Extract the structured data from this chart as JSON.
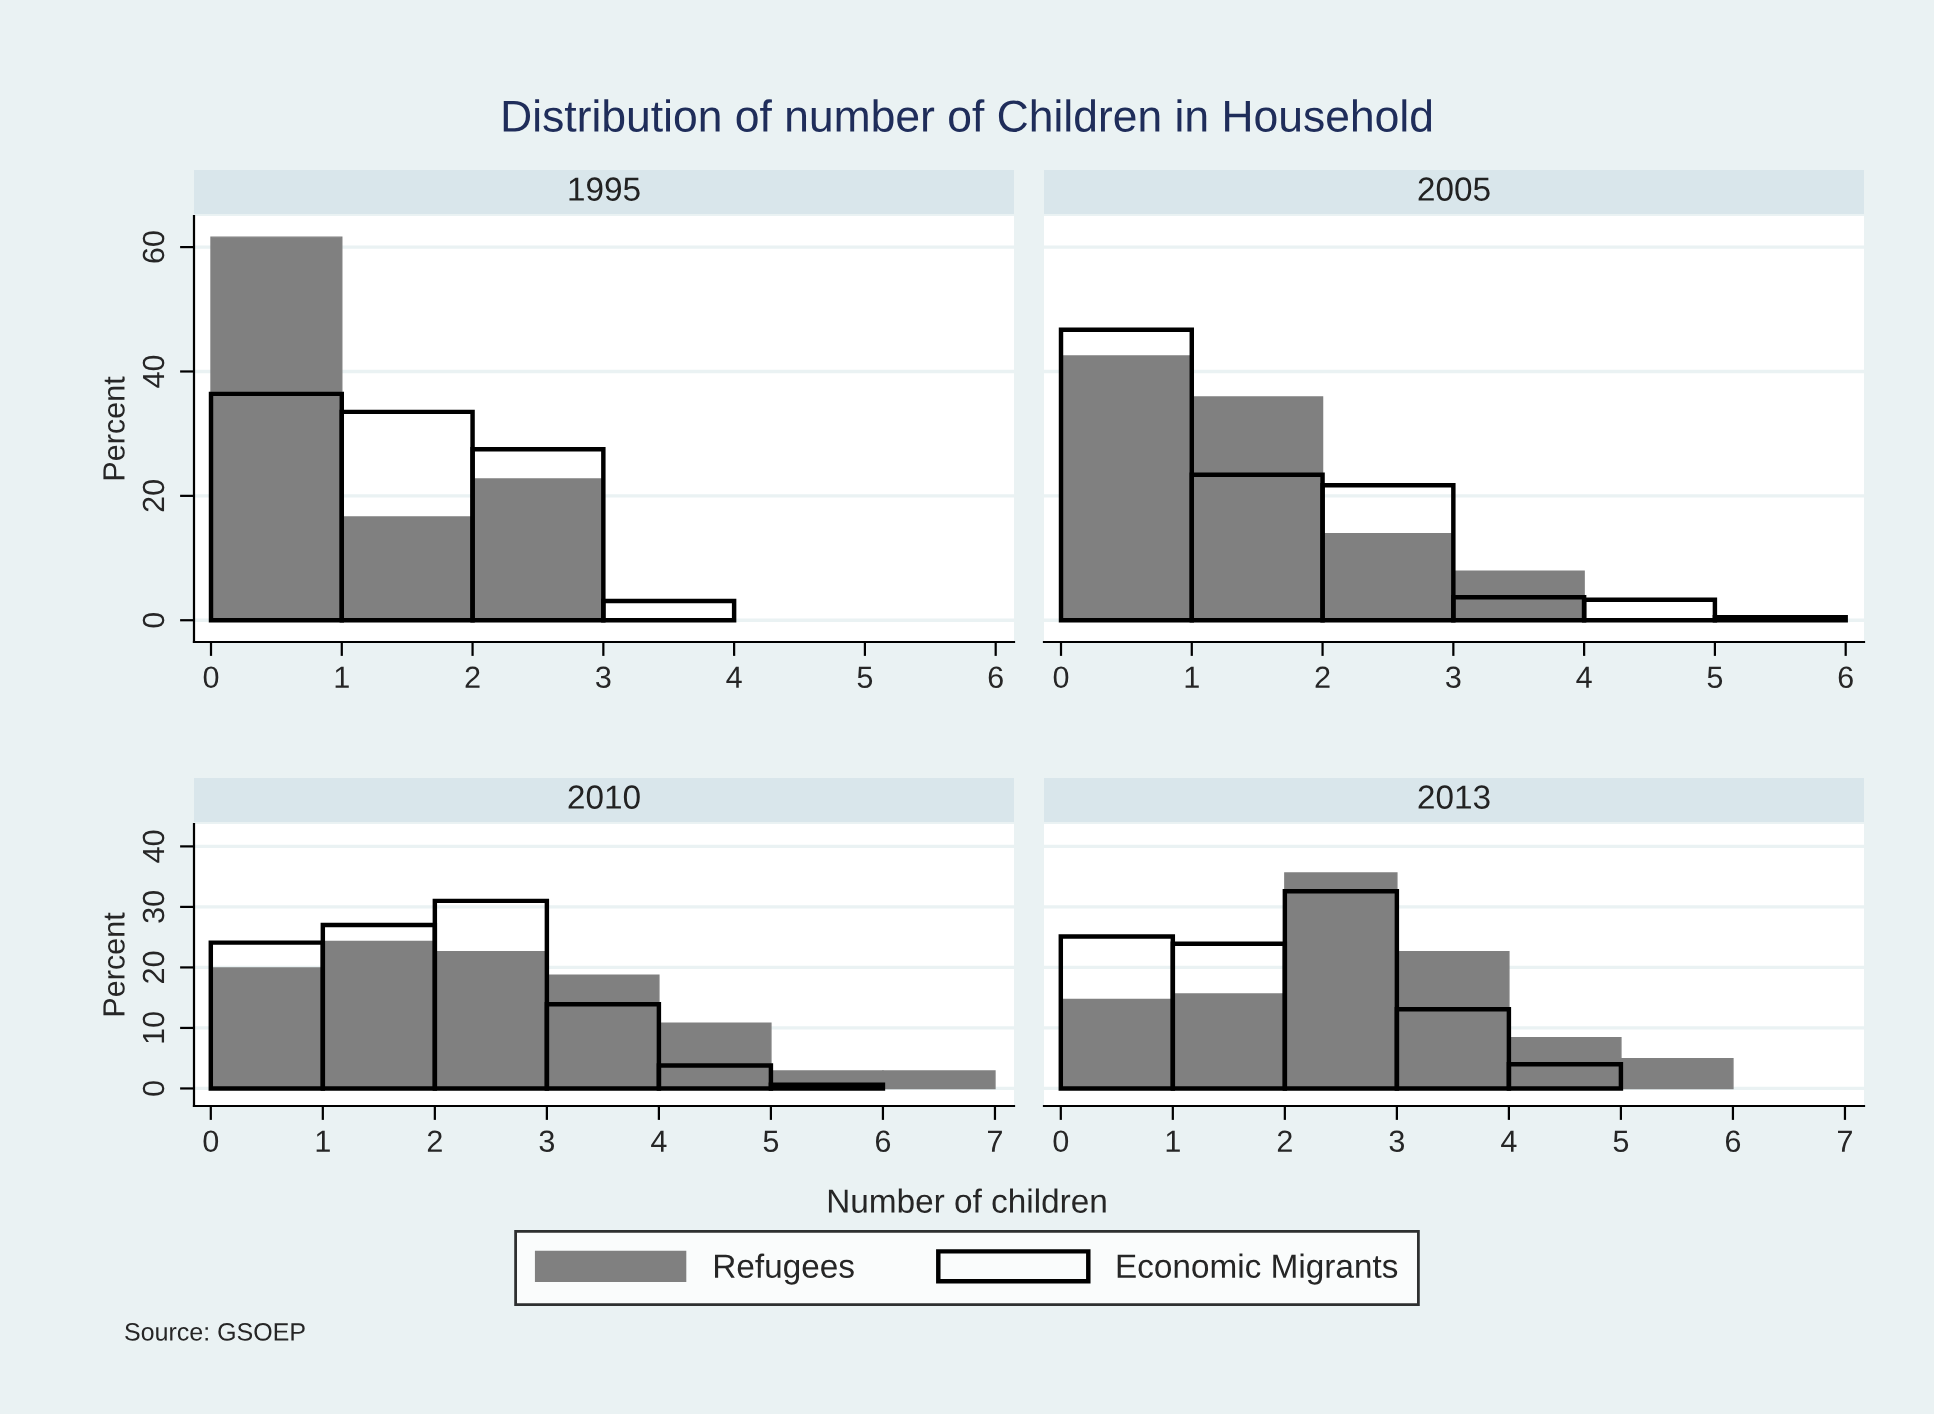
{
  "chart_data": [
    {
      "type": "histogram",
      "title": "1995",
      "ylabel": "Percent",
      "annotations": [
        "Distribution of number of Children in Household"
      ],
      "bins": [
        0,
        1,
        2,
        3,
        4
      ],
      "xlim": [
        -0.13,
        6.14
      ],
      "xticks": [
        0,
        1,
        2,
        3,
        4,
        5,
        6
      ],
      "ylim": [
        -3.5,
        65
      ],
      "yticks": [
        0,
        20,
        40,
        60
      ],
      "grid": "y",
      "series": [
        {
          "color": "#808080",
          "values": [
            61.6,
            16.6,
            22.7,
            null
          ]
        },
        {
          "color": "#000000",
          "values": [
            36.4,
            33.5,
            27.5,
            3.1
          ]
        }
      ]
    },
    {
      "type": "histogram",
      "title": "2005",
      "bins": [
        0,
        1,
        2,
        3,
        4,
        5,
        6
      ],
      "xlim": [
        -0.13,
        6.14
      ],
      "xticks": [
        0,
        1,
        2,
        3,
        4,
        5,
        6
      ],
      "ylim": [
        -3.5,
        65
      ],
      "yticks": [
        0,
        20,
        40,
        60
      ],
      "grid": "y",
      "tick_labels": "x",
      "series": [
        {
          "color": "#808080",
          "values": [
            42.5,
            35.9,
            13.9,
            7.9,
            null,
            null
          ]
        },
        {
          "color": "#000000",
          "values": [
            46.7,
            23.4,
            21.7,
            3.7,
            3.3,
            0.5
          ]
        }
      ]
    },
    {
      "type": "histogram",
      "title": "2010",
      "ylabel": "Percent",
      "bins": [
        0,
        1,
        2,
        3,
        4,
        5,
        6,
        7
      ],
      "xlim": [
        -0.15,
        7.17
      ],
      "xticks": [
        0,
        1,
        2,
        3,
        4,
        5,
        6,
        7
      ],
      "ylim": [
        -2.9,
        43.7
      ],
      "yticks": [
        0,
        10,
        20,
        30,
        40
      ],
      "grid": "y",
      "series": [
        {
          "color": "#808080",
          "values": [
            19.9,
            24.3,
            22.6,
            18.7,
            10.8,
            2.9,
            2.9
          ]
        },
        {
          "color": "#000000",
          "values": [
            24.1,
            27,
            31,
            13.9,
            3.8,
            0.6,
            null
          ]
        }
      ]
    },
    {
      "type": "histogram",
      "title": "2013",
      "xlabel": "Number of children",
      "annotations": [
        "Source: GSOEP"
      ],
      "legend": "bottom",
      "bins": [
        0,
        1,
        2,
        3,
        4,
        5,
        6,
        7
      ],
      "xlim": [
        -0.15,
        7.17
      ],
      "xticks": [
        0,
        1,
        2,
        3,
        4,
        5,
        6,
        7
      ],
      "ylim": [
        -2.9,
        43.7
      ],
      "yticks": [
        0,
        10,
        20,
        30,
        40
      ],
      "grid": "y",
      "tick_labels": "x",
      "series": [
        {
          "name": "Refugees",
          "color": "#808080",
          "values": [
            14.7,
            15.6,
            35.6,
            22.6,
            8.4,
            4.9,
            null
          ]
        },
        {
          "name": "Economic Migrants",
          "color": "#000000",
          "values": [
            25.1,
            23.9,
            32.6,
            13.1,
            4.0,
            null,
            null
          ]
        }
      ]
    }
  ]
}
